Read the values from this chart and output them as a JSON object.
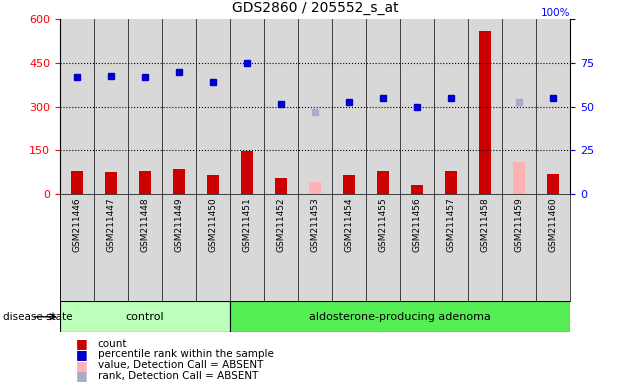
{
  "title": "GDS2860 / 205552_s_at",
  "samples": [
    "GSM211446",
    "GSM211447",
    "GSM211448",
    "GSM211449",
    "GSM211450",
    "GSM211451",
    "GSM211452",
    "GSM211453",
    "GSM211454",
    "GSM211455",
    "GSM211456",
    "GSM211457",
    "GSM211458",
    "GSM211459",
    "GSM211460"
  ],
  "count_values": [
    80,
    75,
    78,
    85,
    65,
    148,
    55,
    null,
    65,
    78,
    30,
    80,
    560,
    null,
    70
  ],
  "count_absent": [
    null,
    null,
    null,
    null,
    null,
    null,
    null,
    40,
    null,
    null,
    null,
    null,
    null,
    110,
    null
  ],
  "rank_values": [
    400,
    405,
    400,
    420,
    385,
    450,
    310,
    null,
    315,
    330,
    300,
    330,
    null,
    null,
    330
  ],
  "rank_absent": [
    null,
    null,
    null,
    null,
    null,
    null,
    null,
    280,
    null,
    null,
    null,
    null,
    null,
    315,
    null
  ],
  "n_control": 5,
  "left_ylim": [
    0,
    600
  ],
  "right_ylim": [
    0,
    100
  ],
  "left_yticks": [
    0,
    150,
    300,
    450,
    600
  ],
  "right_yticks": [
    0,
    25,
    50,
    75,
    100
  ],
  "bar_color": "#cc0000",
  "bar_absent_color": "#ffb0b0",
  "rank_color": "#0000cc",
  "rank_absent_color": "#aaaacc",
  "control_bg": "#bbffbb",
  "adenoma_bg": "#55ee55",
  "plot_bg": "#d8d8d8",
  "bar_width": 0.35
}
